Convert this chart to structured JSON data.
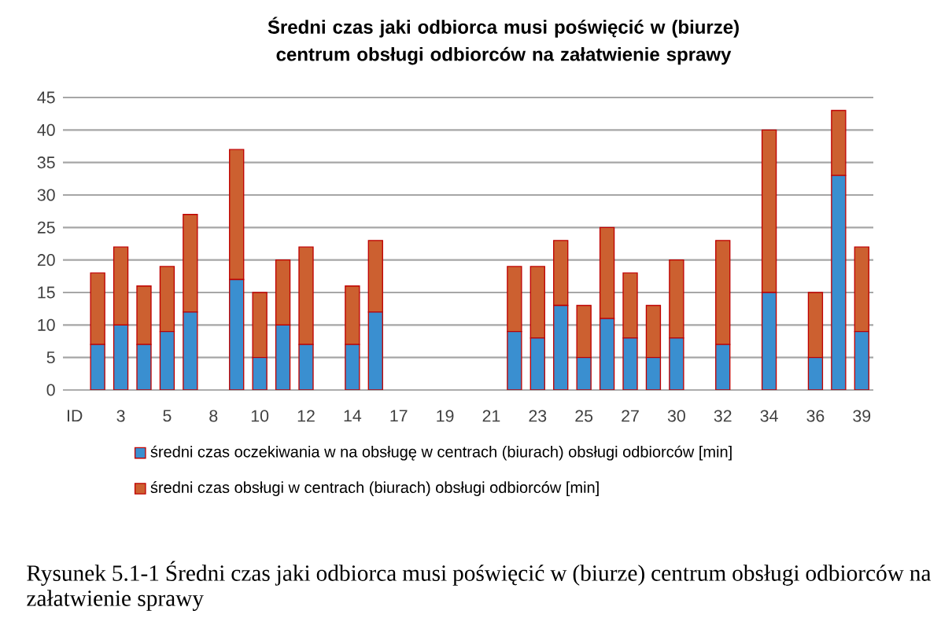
{
  "chart_data": {
    "type": "bar",
    "stacked": true,
    "title": "Średni czas jaki odbiorca musi poświęcić w (biurze) centrum obsługi odbiorców na załatwienie sprawy",
    "categories": [
      "ID",
      null,
      "3",
      null,
      "5",
      null,
      "8",
      null,
      "10",
      null,
      "12",
      null,
      "14",
      null,
      "17",
      null,
      "19",
      null,
      "21",
      null,
      "23",
      null,
      "25",
      null,
      "27",
      null,
      "30",
      null,
      "32",
      null,
      "34",
      null,
      "36",
      null,
      "39"
    ],
    "series": [
      {
        "name": "średni czas oczekiwania w na obsługę w centrach (biurach) obsługi odbiorców [min]",
        "color": "#3a8fd0",
        "values": [
          0,
          7,
          10,
          7,
          9,
          12,
          null,
          17,
          5,
          10,
          7,
          null,
          7,
          12,
          0,
          0,
          null,
          0,
          0,
          9,
          8,
          13,
          5,
          11,
          8,
          5,
          8,
          0,
          7,
          0,
          15,
          0,
          5,
          33,
          9
        ]
      },
      {
        "name": "średni czas obsługi w centrach (biurach) obsługi odbiorców [min]",
        "color": "#cc6030",
        "values": [
          0,
          11,
          12,
          9,
          10,
          15,
          null,
          20,
          10,
          10,
          15,
          null,
          9,
          11,
          0,
          0,
          null,
          0,
          0,
          10,
          11,
          10,
          8,
          14,
          10,
          8,
          12,
          0,
          16,
          0,
          25,
          0,
          10,
          10,
          13
        ]
      }
    ],
    "ylim": [
      0,
      45
    ],
    "yticks": [
      0,
      5,
      10,
      15,
      20,
      25,
      30,
      35,
      40,
      45
    ],
    "grid": "y",
    "legend": "bottom",
    "annotations": [
      "Rysunek 5.1-1 Średni czas jaki odbiorca musi poświęcić w (biurze) centrum obsługi odbiorców na załatwienie sprawy"
    ]
  }
}
